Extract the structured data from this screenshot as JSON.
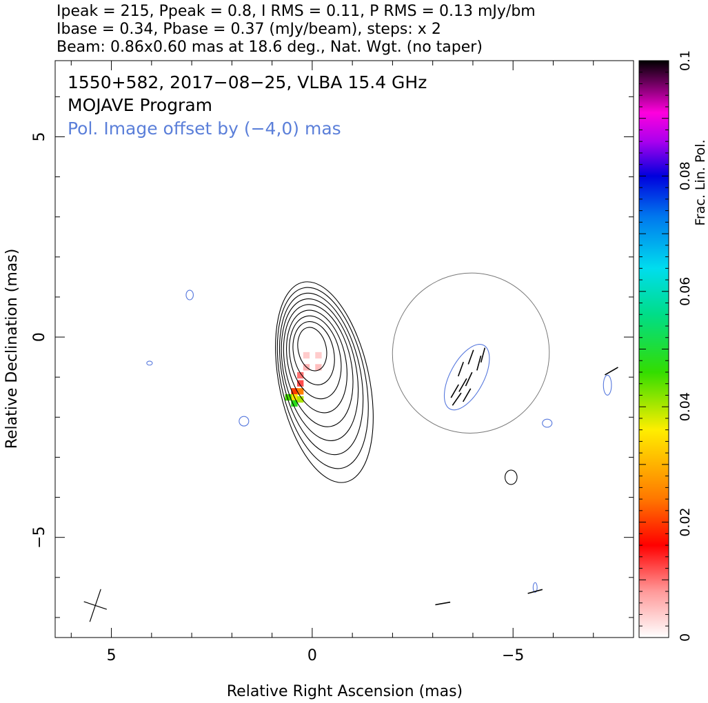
{
  "header": {
    "line1": "Ipeak = 215, Ppeak = 0.8, I RMS = 0.11, P RMS = 0.13 mJy/bm",
    "line2": "Ibase = 0.34, Pbase = 0.37 (mJy/beam), steps: x 2",
    "line3": "Beam: 0.86x0.60 mas at 18.6 deg., Nat. Wgt. (no taper)"
  },
  "chart_data": {
    "type": "contour",
    "annotations": {
      "source_line": "1550+582, 2017−08−25, VLBA 15.4 GHz",
      "program_line": "MOJAVE Program",
      "offset_line": "Pol. Image offset by (−4,0) mas"
    },
    "xlabel": "Relative Right Ascension (mas)",
    "ylabel": "Relative Declination (mas)",
    "xlim": [
      6.4,
      -8.0
    ],
    "ylim": [
      -7.5,
      6.9
    ],
    "x_ticks": [
      {
        "v": 5,
        "label": "5"
      },
      {
        "v": 0,
        "label": "0"
      },
      {
        "v": -5,
        "label": "−5"
      }
    ],
    "y_ticks": [
      {
        "v": 5,
        "label": "5"
      },
      {
        "v": 0,
        "label": "0"
      },
      {
        "v": -5,
        "label": "−5"
      }
    ],
    "colorbar": {
      "label": "Frac. Lin. Pol.",
      "range": [
        0,
        0.1
      ],
      "ticks": [
        {
          "v": 0,
          "label": "0"
        },
        {
          "v": 0.02,
          "label": "0.02"
        },
        {
          "v": 0.04,
          "label": "0.04"
        },
        {
          "v": 0.06,
          "label": "0.06"
        },
        {
          "v": 0.08,
          "label": "0.08"
        },
        {
          "v": 0.1,
          "label": "0.1"
        }
      ]
    },
    "colors": {
      "stokes_i": "#000000",
      "polarization": "#5577dd",
      "offset_text": "#5b7fd9"
    },
    "stokes_i_contours": {
      "center": [
        0.0,
        -0.3
      ],
      "levels": [
        {
          "rx": 0.35,
          "ry": 0.55
        },
        {
          "rx": 0.5,
          "ry": 0.8
        },
        {
          "rx": 0.62,
          "ry": 1.05
        },
        {
          "rx": 0.72,
          "ry": 1.3
        },
        {
          "rx": 0.82,
          "ry": 1.55
        },
        {
          "rx": 0.9,
          "ry": 1.8
        },
        {
          "rx": 0.97,
          "ry": 2.05
        },
        {
          "rx": 1.05,
          "ry": 2.3
        },
        {
          "rx": 1.12,
          "ry": 2.55
        }
      ]
    },
    "fractional_pol_pixels": [
      {
        "x": 0.15,
        "y": -0.45,
        "v": 0.004
      },
      {
        "x": -0.15,
        "y": -0.45,
        "v": 0.004
      },
      {
        "x": 0.15,
        "y": -0.75,
        "v": 0.006
      },
      {
        "x": -0.15,
        "y": -0.75,
        "v": 0.005
      },
      {
        "x": 0.3,
        "y": -0.95,
        "v": 0.01
      },
      {
        "x": 0.3,
        "y": -1.15,
        "v": 0.012
      },
      {
        "x": 0.45,
        "y": -1.35,
        "v": 0.02
      },
      {
        "x": 0.3,
        "y": -1.35,
        "v": 0.025
      },
      {
        "x": 0.45,
        "y": -1.5,
        "v": 0.035
      },
      {
        "x": 0.6,
        "y": -1.5,
        "v": 0.045
      },
      {
        "x": 0.45,
        "y": -1.65,
        "v": 0.048
      },
      {
        "x": 0.3,
        "y": -1.55,
        "v": 0.04
      }
    ],
    "pol_contours": [
      {
        "x": 3.05,
        "y": 1.05,
        "rx": 0.09,
        "ry": 0.12
      },
      {
        "x": 4.05,
        "y": -0.65,
        "rx": 0.07,
        "ry": 0.05
      },
      {
        "x": 1.7,
        "y": -2.1,
        "rx": 0.12,
        "ry": 0.12
      },
      {
        "x": -5.85,
        "y": -2.15,
        "rx": 0.12,
        "ry": 0.1
      },
      {
        "x": -4.95,
        "y": -3.5,
        "rx": 0.15,
        "ry": 0.18
      },
      {
        "x": -7.35,
        "y": -1.2,
        "rx": 0.1,
        "ry": 0.25
      },
      {
        "x": -5.55,
        "y": -6.25,
        "rx": 0.05,
        "ry": 0.12
      }
    ],
    "evpa_vectors": [
      {
        "x": -3.55,
        "y": -1.35,
        "angle": 30
      },
      {
        "x": -3.75,
        "y": -1.2,
        "angle": 30
      },
      {
        "x": -3.9,
        "y": -1.05,
        "angle": 25
      },
      {
        "x": -3.6,
        "y": -1.55,
        "angle": 35
      },
      {
        "x": -3.85,
        "y": -1.45,
        "angle": 30
      },
      {
        "x": -3.7,
        "y": -0.8,
        "angle": 20
      },
      {
        "x": -3.95,
        "y": -0.5,
        "angle": 20
      },
      {
        "x": -4.25,
        "y": -0.45,
        "angle": 15
      },
      {
        "x": -4.15,
        "y": -0.65,
        "angle": 15
      },
      {
        "x": -7.45,
        "y": -0.85,
        "angle": 60
      },
      {
        "x": -3.25,
        "y": -6.65,
        "angle": 80
      },
      {
        "x": -5.55,
        "y": -6.35,
        "angle": 75
      }
    ],
    "beam": {
      "x": 5.4,
      "y": -6.7,
      "major": 0.86,
      "minor": 0.6,
      "pa": 18.6
    }
  }
}
